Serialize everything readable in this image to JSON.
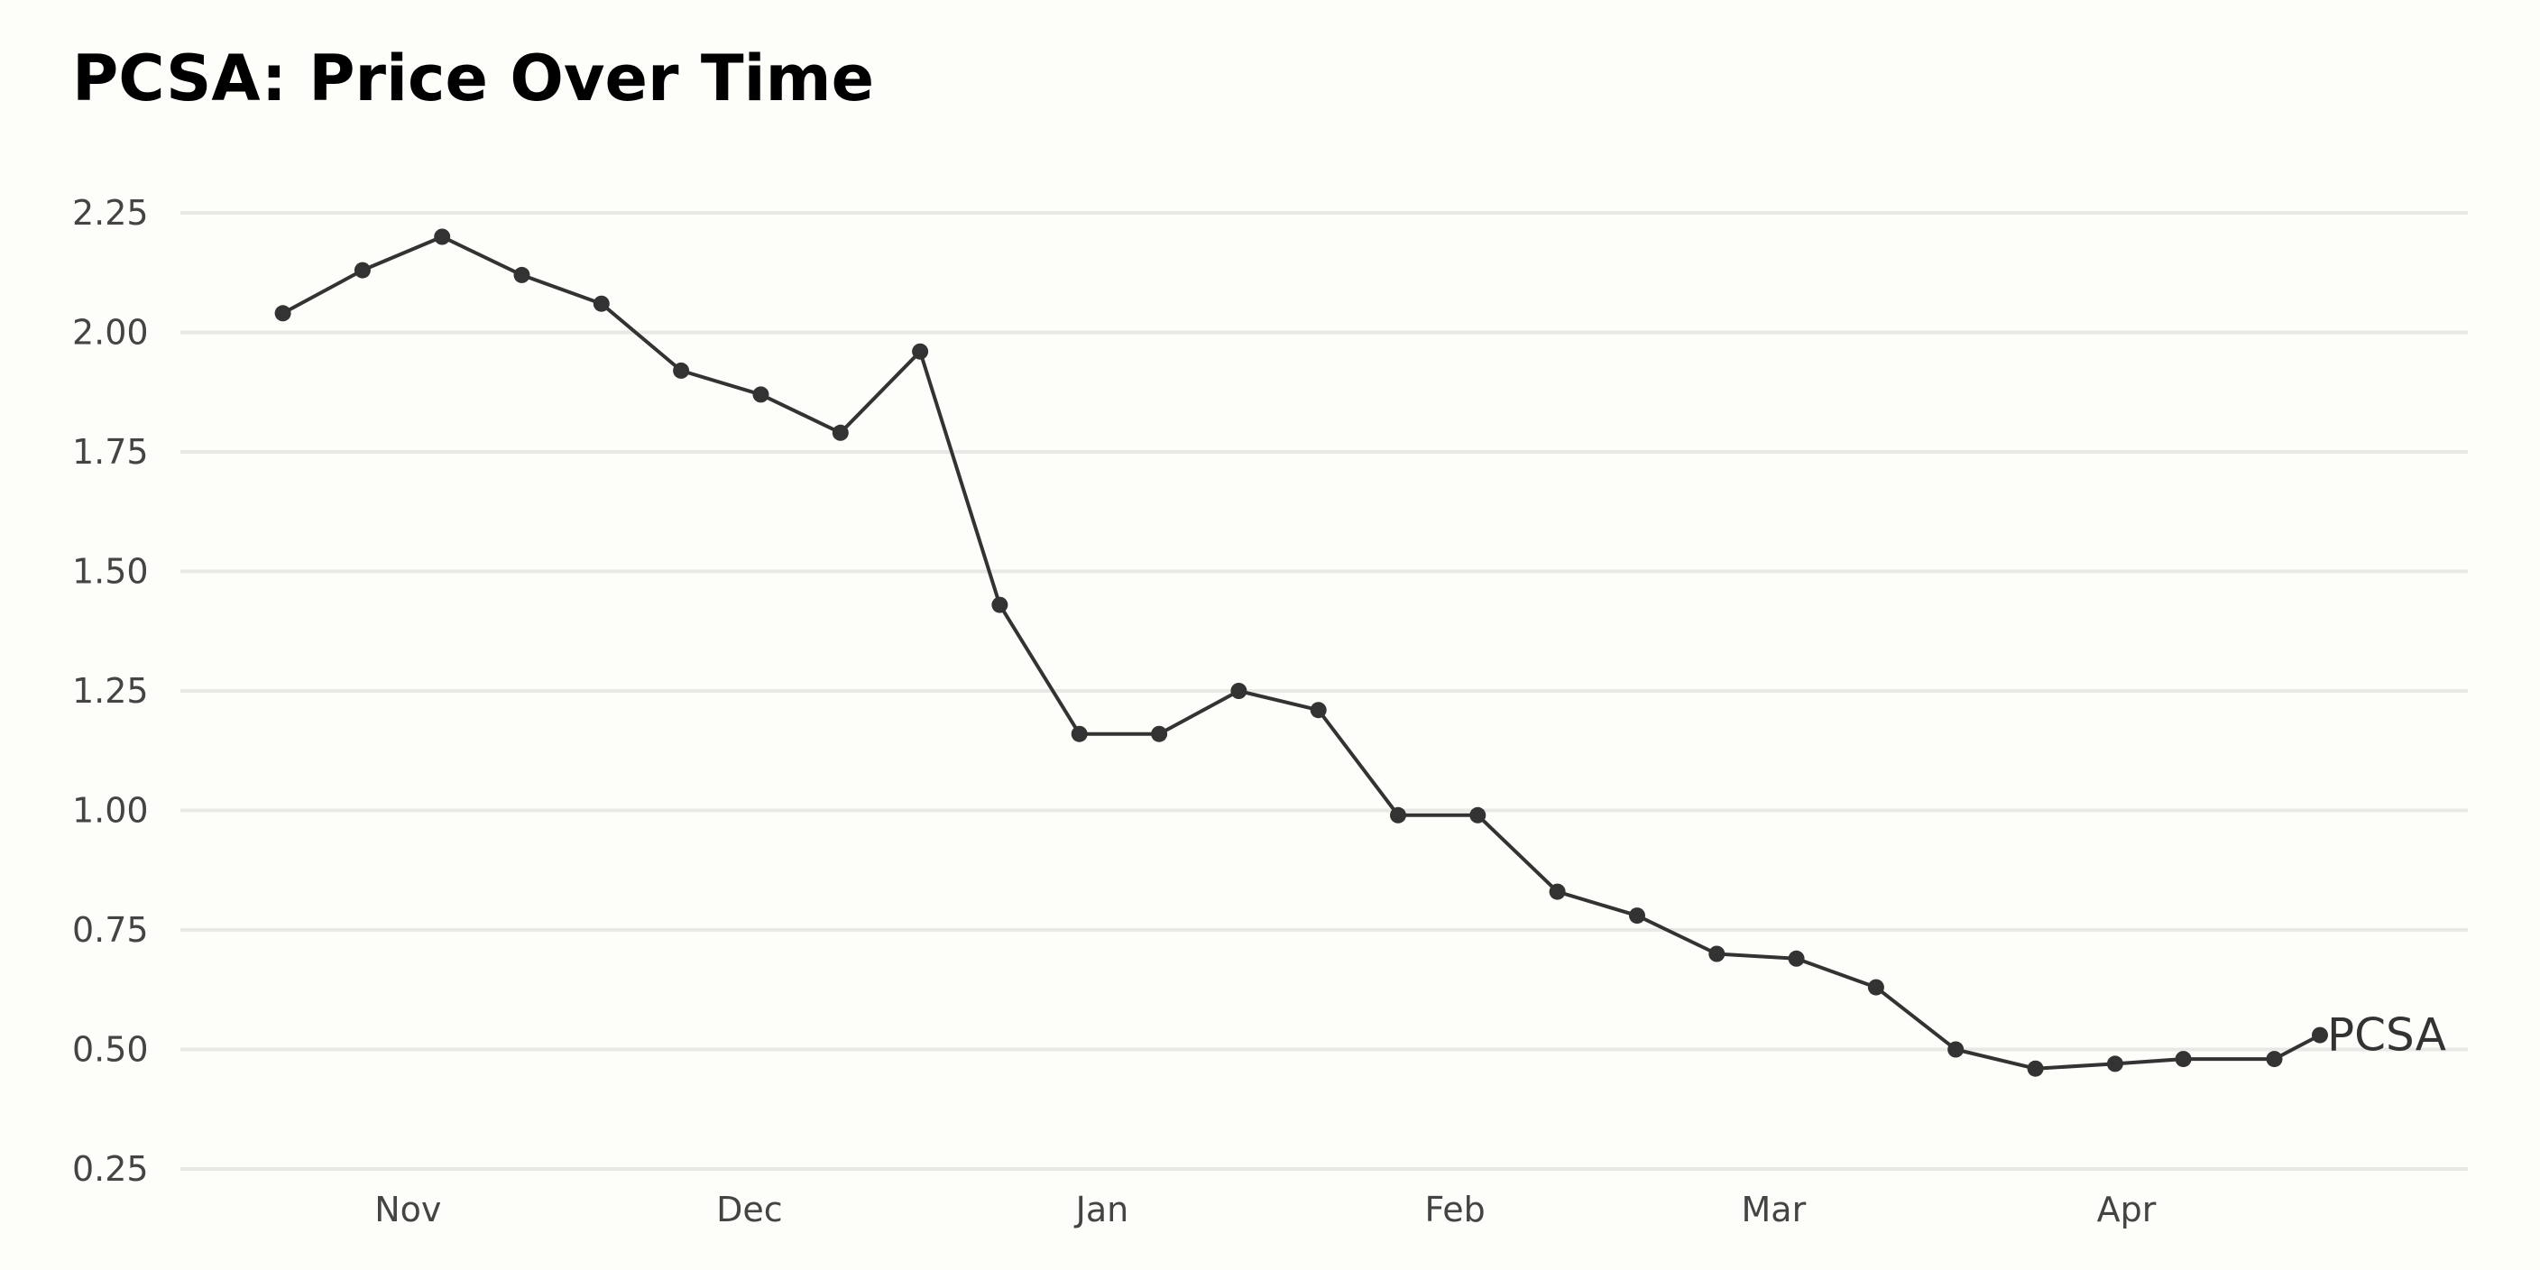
{
  "chart_data": {
    "type": "line",
    "title": "PCSA: Price Over Time",
    "xlabel": "",
    "ylabel": "",
    "ylim": [
      0.25,
      2.25
    ],
    "yticks": [
      0.25,
      0.5,
      0.75,
      1.0,
      1.25,
      1.5,
      1.75,
      2.0,
      2.25
    ],
    "ytick_labels": [
      "0.25",
      "0.50",
      "0.75",
      "1.00",
      "1.25",
      "1.50",
      "1.75",
      "2.00",
      "2.25"
    ],
    "xlim": [
      "2022-10-12",
      "2023-05-01"
    ],
    "xticks": [
      "2022-11-01",
      "2022-12-01",
      "2023-01-01",
      "2023-02-01",
      "2023-03-01",
      "2023-04-01"
    ],
    "xtick_labels": [
      "Nov",
      "Dec",
      "Jan",
      "Feb",
      "Mar",
      "Apr"
    ],
    "grid": "horizontal",
    "series": [
      {
        "name": "PCSA",
        "color": "#333333",
        "marker": "circle",
        "end_label": "PCSA",
        "x": [
          "2022-10-21",
          "2022-10-28",
          "2022-11-04",
          "2022-11-11",
          "2022-11-18",
          "2022-11-25",
          "2022-12-02",
          "2022-12-09",
          "2022-12-16",
          "2022-12-23",
          "2022-12-30",
          "2023-01-06",
          "2023-01-13",
          "2023-01-20",
          "2023-01-27",
          "2023-02-03",
          "2023-02-10",
          "2023-02-17",
          "2023-02-24",
          "2023-03-03",
          "2023-03-10",
          "2023-03-17",
          "2023-03-24",
          "2023-03-31",
          "2023-04-06",
          "2023-04-14",
          "2023-04-18"
        ],
        "y": [
          2.04,
          2.13,
          2.2,
          2.12,
          2.06,
          1.92,
          1.87,
          1.79,
          1.96,
          1.43,
          1.16,
          1.16,
          1.25,
          1.21,
          0.99,
          0.99,
          0.83,
          0.78,
          0.7,
          0.69,
          0.63,
          0.5,
          0.46,
          0.47,
          0.48,
          0.48,
          0.53
        ]
      }
    ]
  }
}
